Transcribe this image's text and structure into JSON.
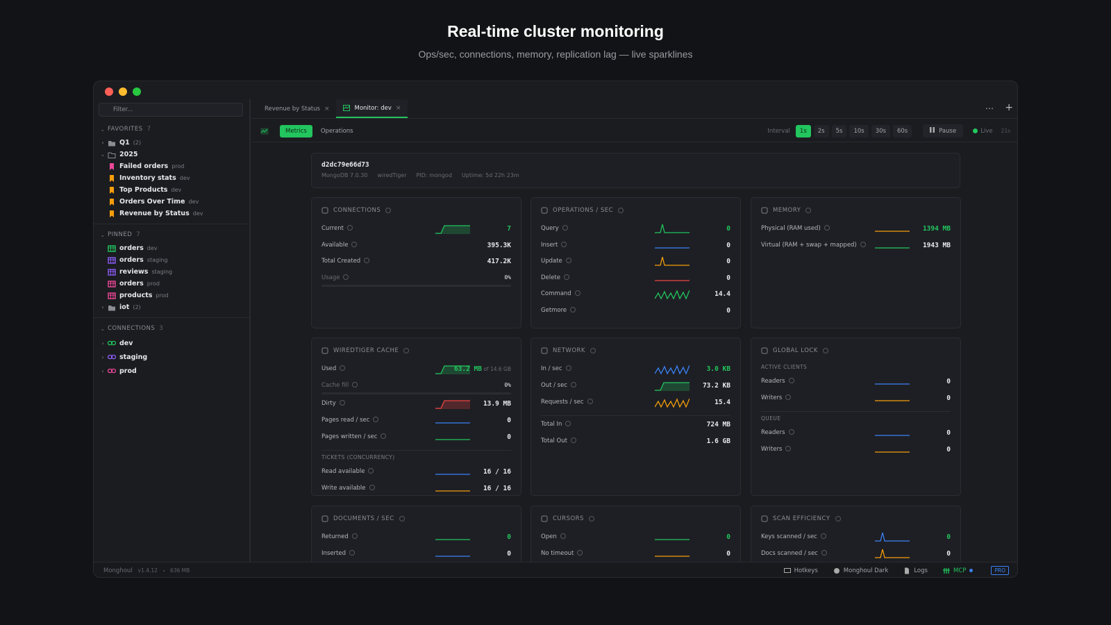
{
  "header": {
    "title": "Real-time cluster monitoring",
    "subtitle": "Ops/sec, connections, memory, replication lag — live sparklines"
  },
  "sidebar": {
    "filter": "Filter...",
    "sections": [
      {
        "label": "FAVORITES",
        "count": 7,
        "items": [
          {
            "name": "Q1",
            "meta": "(2)",
            "icon": "folder",
            "color": "#8b8d94",
            "depth": 0,
            "arrow": "closed"
          },
          {
            "name": "2025",
            "icon": "folder-open",
            "color": "#8b8d94",
            "depth": 0,
            "arrow": "open"
          },
          {
            "name": "Failed orders",
            "meta": "prod",
            "icon": "bookmark",
            "color": "#ec4899",
            "depth": 1
          },
          {
            "name": "Inventory stats",
            "meta": "dev",
            "icon": "bookmark",
            "color": "#f59e0b",
            "depth": 1
          },
          {
            "name": "Top Products",
            "meta": "dev",
            "icon": "bookmark",
            "color": "#f59e0b",
            "depth": 1
          },
          {
            "name": "Orders Over Time",
            "meta": "dev",
            "icon": "bookmark",
            "color": "#f59e0b",
            "depth": 1
          },
          {
            "name": "Revenue by Status",
            "meta": "dev",
            "icon": "bookmark",
            "color": "#f59e0b",
            "depth": 1
          }
        ]
      },
      {
        "label": "PINNED",
        "count": 7,
        "items": [
          {
            "name": "orders",
            "meta": "dev",
            "icon": "table",
            "color": "#22c55e",
            "depth": 1
          },
          {
            "name": "orders",
            "meta": "staging",
            "icon": "table",
            "color": "#8b5cf6",
            "depth": 1
          },
          {
            "name": "reviews",
            "meta": "staging",
            "icon": "table",
            "color": "#8b5cf6",
            "depth": 1
          },
          {
            "name": "orders",
            "meta": "prod",
            "icon": "table",
            "color": "#ec4899",
            "depth": 1
          },
          {
            "name": "products",
            "meta": "prod",
            "icon": "table",
            "color": "#ec4899",
            "depth": 1
          },
          {
            "name": "iot",
            "meta": "(2)",
            "icon": "folder",
            "color": "#8b8d94",
            "depth": 0,
            "arrow": "closed"
          }
        ]
      },
      {
        "label": "CONNECTIONS",
        "count": 3,
        "items": [
          {
            "name": "dev",
            "icon": "link",
            "color": "#22c55e",
            "depth": 0,
            "arrow": "closed"
          },
          {
            "name": "staging",
            "icon": "link",
            "color": "#8b5cf6",
            "depth": 0,
            "arrow": "closed"
          },
          {
            "name": "prod",
            "icon": "link",
            "color": "#ec4899",
            "depth": 0,
            "arrow": "closed"
          }
        ]
      }
    ]
  },
  "tabs": [
    {
      "label": "Revenue by Status",
      "active": false
    },
    {
      "label": "Monitor: dev",
      "active": true
    }
  ],
  "toolbar": {
    "views": [
      {
        "label": "Metrics",
        "active": true
      },
      {
        "label": "Operations",
        "active": false
      }
    ],
    "interval_label": "Interval",
    "intervals": [
      {
        "label": "1s",
        "active": true
      },
      {
        "label": "2s"
      },
      {
        "label": "5s"
      },
      {
        "label": "10s"
      },
      {
        "label": "30s"
      },
      {
        "label": "60s"
      }
    ],
    "pause": "Pause",
    "live": "Live",
    "elapsed": "21s"
  },
  "server": {
    "id": "d2dc79e66d73",
    "details": [
      "MongoDB 7.0.30",
      "wiredTiger",
      "PID: mongod",
      "Uptime: 5d 22h 23m"
    ]
  },
  "cards": [
    {
      "title": "CONNECTIONS",
      "rows": [
        {
          "label": "Current",
          "value": "7",
          "spark": "step",
          "color": "#22c55e",
          "highlight": true
        },
        {
          "label": "Available",
          "value": "395.3K"
        },
        {
          "label": "Total Created",
          "value": "417.2K"
        },
        {
          "label": "Usage",
          "value": "0%",
          "bar": true
        }
      ]
    },
    {
      "title": "OPERATIONS / SEC",
      "rows": [
        {
          "label": "Query",
          "value": "0",
          "spark": "spike",
          "color": "#22c55e",
          "highlight": true
        },
        {
          "label": "Insert",
          "value": "0",
          "spark": "flat",
          "color": "#3b82f6"
        },
        {
          "label": "Update",
          "value": "0",
          "spark": "spike",
          "color": "#f59e0b"
        },
        {
          "label": "Delete",
          "value": "0",
          "spark": "flat",
          "color": "#ef4444"
        },
        {
          "label": "Command",
          "value": "14.4",
          "spark": "wave",
          "color": "#22c55e"
        },
        {
          "label": "Getmore",
          "value": "0"
        }
      ]
    },
    {
      "title": "MEMORY",
      "rows": [
        {
          "label": "Physical (RAM used)",
          "value": "1394 MB",
          "spark": "flat",
          "color": "#f59e0b",
          "highlight": true
        },
        {
          "label": "Virtual (RAM + swap + mapped)",
          "value": "1943 MB",
          "spark": "flat",
          "color": "#22c55e"
        }
      ]
    },
    {
      "title": "WIREDTIGER CACHE",
      "rows": [
        {
          "label": "Used",
          "value": "63.2 MB",
          "suffix": "of 14.6 GB",
          "spark": "step",
          "color": "#22c55e",
          "highlight": true
        },
        {
          "label": "Cache fill",
          "value": "0%",
          "bar": true
        },
        {
          "label": "Dirty",
          "value": "13.9 MB",
          "spark": "step",
          "color": "#ef4444"
        },
        {
          "label": "Pages read / sec",
          "value": "0",
          "spark": "flat",
          "color": "#3b82f6"
        },
        {
          "label": "Pages written / sec",
          "value": "0",
          "spark": "flat",
          "color": "#22c55e"
        },
        {
          "section": "TICKETS (CONCURRENCY)",
          "divider": true
        },
        {
          "label": "Read available",
          "value": "16 / 16",
          "spark": "flat",
          "color": "#3b82f6"
        },
        {
          "label": "Write available",
          "value": "16 / 16",
          "spark": "flat",
          "color": "#f59e0b"
        }
      ]
    },
    {
      "title": "NETWORK",
      "rows": [
        {
          "label": "In / sec",
          "value": "3.0 KB",
          "spark": "wave",
          "color": "#3b82f6",
          "highlight": true
        },
        {
          "label": "Out / sec",
          "value": "73.2 KB",
          "spark": "step",
          "color": "#22c55e"
        },
        {
          "label": "Requests / sec",
          "value": "15.4",
          "spark": "wave",
          "color": "#f59e0b"
        },
        {
          "label": "Total In",
          "value": "724 MB",
          "divider": true
        },
        {
          "label": "Total Out",
          "value": "1.6 GB"
        }
      ]
    },
    {
      "title": "GLOBAL LOCK",
      "rows": [
        {
          "section": "ACTIVE CLIENTS"
        },
        {
          "label": "Readers",
          "value": "0",
          "spark": "flat",
          "color": "#3b82f6"
        },
        {
          "label": "Writers",
          "value": "0",
          "spark": "flat",
          "color": "#f59e0b"
        },
        {
          "section": "QUEUE",
          "divider": true
        },
        {
          "label": "Readers",
          "value": "0",
          "spark": "flat",
          "color": "#3b82f6"
        },
        {
          "label": "Writers",
          "value": "0",
          "spark": "flat",
          "color": "#f59e0b"
        }
      ]
    },
    {
      "title": "DOCUMENTS / SEC",
      "rows": [
        {
          "label": "Returned",
          "value": "0",
          "spark": "flat",
          "color": "#22c55e",
          "highlight": true
        },
        {
          "label": "Inserted",
          "value": "0",
          "spark": "flat",
          "color": "#3b82f6"
        }
      ]
    },
    {
      "title": "CURSORS",
      "rows": [
        {
          "label": "Open",
          "value": "0",
          "spark": "flat",
          "color": "#22c55e",
          "highlight": true
        },
        {
          "label": "No timeout",
          "value": "0",
          "spark": "flat",
          "color": "#f59e0b"
        }
      ]
    },
    {
      "title": "SCAN EFFICIENCY",
      "rows": [
        {
          "label": "Keys scanned / sec",
          "value": "0",
          "spark": "spike",
          "color": "#3b82f6",
          "highlight": true
        },
        {
          "label": "Docs scanned / sec",
          "value": "0",
          "spark": "spike",
          "color": "#f59e0b"
        }
      ]
    }
  ],
  "status_bar": {
    "app": "Monghoul",
    "version": "v1.4.12",
    "memory": "636 MB",
    "items": [
      "Hotkeys",
      "Monghoul Dark",
      "Logs",
      "MCP"
    ],
    "badge": "PRO"
  }
}
